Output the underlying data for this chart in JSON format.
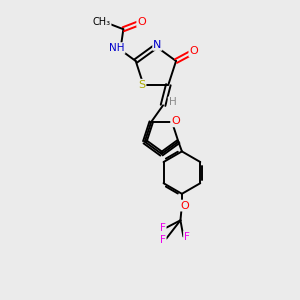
{
  "bg_color": "#ebebeb",
  "bond_color": "#000000",
  "atom_colors": {
    "O": "#ff0000",
    "N": "#0000cc",
    "S": "#aaaa00",
    "F": "#ee00ee",
    "C": "#000000",
    "H": "#888888"
  },
  "lw": 1.4
}
